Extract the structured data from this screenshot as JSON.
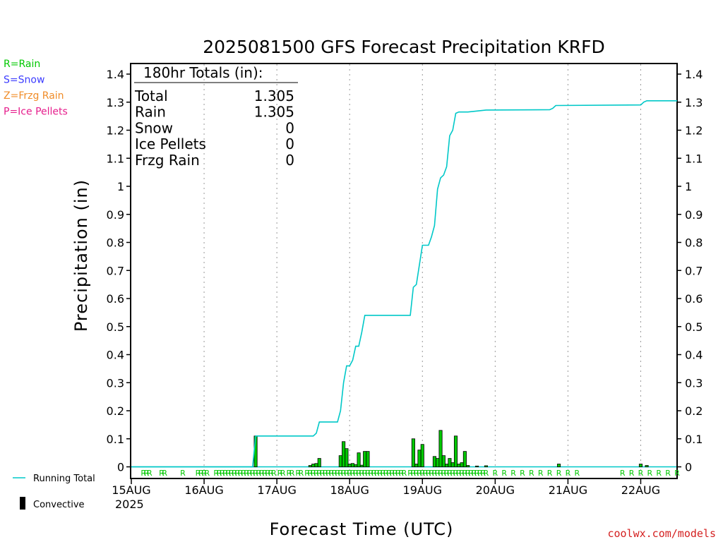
{
  "chart_data": {
    "type": "bar+line",
    "title": "2025081500 GFS Forecast Precipitation KRFD",
    "ylabel": "Precipitation (in)",
    "xlabel": "Forecast Time (UTC)",
    "ylim": [
      0,
      1.4
    ],
    "yticks": [
      "1.4",
      "1.3",
      "1.2",
      "1.1",
      "1",
      "0.9",
      "0.8",
      "0.7",
      "0.6",
      "0.5",
      "0.4",
      "0.3",
      "0.2",
      "0.1",
      "0"
    ],
    "xlim_hours": [
      0,
      180
    ],
    "x_ticks": [
      {
        "label": "15AUG",
        "hour": 0
      },
      {
        "label": "16AUG",
        "hour": 24
      },
      {
        "label": "17AUG",
        "hour": 48
      },
      {
        "label": "18AUG",
        "hour": 72
      },
      {
        "label": "19AUG",
        "hour": 96
      },
      {
        "label": "20AUG",
        "hour": 120
      },
      {
        "label": "21AUG",
        "hour": 144
      },
      {
        "label": "22AUG",
        "hour": 168
      }
    ],
    "year_label": "2025",
    "grid": "vertical dotted at day boundaries",
    "legend_types": [
      {
        "label": "R=Rain",
        "color": "#00c800"
      },
      {
        "label": "S=Snow",
        "color": "#3c3cff"
      },
      {
        "label": "Z=Frzg Rain",
        "color": "#f08c28"
      },
      {
        "label": "P=Ice Pellets",
        "color": "#e61e8c"
      }
    ],
    "legend_series": [
      {
        "label": "Running Total",
        "color": "#00c8c8"
      },
      {
        "label": "Convective",
        "color": "#000000"
      }
    ],
    "totals_box": {
      "header": "180hr Totals (in):",
      "rows": [
        {
          "label": "Total",
          "value": "1.305"
        },
        {
          "label": "Rain",
          "value": "1.305"
        },
        {
          "label": "Snow",
          "value": "0"
        },
        {
          "label": "Ice Pellets",
          "value": "0"
        },
        {
          "label": "Frzg Rain",
          "value": "0"
        }
      ]
    },
    "running_total": [
      [
        0,
        0
      ],
      [
        40,
        0
      ],
      [
        41,
        0.11
      ],
      [
        60,
        0.11
      ],
      [
        61,
        0.12
      ],
      [
        62,
        0.16
      ],
      [
        68,
        0.16
      ],
      [
        69,
        0.2
      ],
      [
        70,
        0.3
      ],
      [
        71,
        0.36
      ],
      [
        72,
        0.36
      ],
      [
        73,
        0.38
      ],
      [
        74,
        0.43
      ],
      [
        75,
        0.43
      ],
      [
        76,
        0.48
      ],
      [
        77,
        0.54
      ],
      [
        92,
        0.54
      ],
      [
        93,
        0.64
      ],
      [
        94,
        0.65
      ],
      [
        95,
        0.72
      ],
      [
        96,
        0.79
      ],
      [
        98,
        0.79
      ],
      [
        99,
        0.82
      ],
      [
        100,
        0.86
      ],
      [
        101,
        0.99
      ],
      [
        102,
        1.03
      ],
      [
        103,
        1.04
      ],
      [
        104,
        1.07
      ],
      [
        105,
        1.18
      ],
      [
        106,
        1.2
      ],
      [
        107,
        1.26
      ],
      [
        108,
        1.265
      ],
      [
        111,
        1.265
      ],
      [
        117,
        1.272
      ],
      [
        138,
        1.273
      ],
      [
        139,
        1.278
      ],
      [
        140,
        1.288
      ],
      [
        168,
        1.29
      ],
      [
        169,
        1.3
      ],
      [
        170,
        1.305
      ],
      [
        180,
        1.305
      ]
    ],
    "hourly_bars": [
      [
        41,
        0.11
      ],
      [
        59,
        0.005
      ],
      [
        60,
        0.01
      ],
      [
        61,
        0.012
      ],
      [
        62,
        0.03
      ],
      [
        69,
        0.04
      ],
      [
        70,
        0.09
      ],
      [
        71,
        0.065
      ],
      [
        72,
        0.01
      ],
      [
        73,
        0.012
      ],
      [
        74,
        0.008
      ],
      [
        75,
        0.05
      ],
      [
        76,
        0.006
      ],
      [
        77,
        0.055
      ],
      [
        78,
        0.055
      ],
      [
        93,
        0.1
      ],
      [
        94,
        0.01
      ],
      [
        95,
        0.06
      ],
      [
        96,
        0.08
      ],
      [
        100,
        0.037
      ],
      [
        101,
        0.03
      ],
      [
        102,
        0.13
      ],
      [
        103,
        0.04
      ],
      [
        104,
        0.01
      ],
      [
        105,
        0.03
      ],
      [
        106,
        0.015
      ],
      [
        107,
        0.11
      ],
      [
        108,
        0.01
      ],
      [
        109,
        0.015
      ],
      [
        110,
        0.055
      ],
      [
        111,
        0.005
      ],
      [
        114,
        0.003
      ],
      [
        117,
        0.004
      ],
      [
        141,
        0.01
      ],
      [
        168,
        0.01
      ],
      [
        170,
        0.005
      ]
    ],
    "precip_type_marks": {
      "symbol": "R",
      "hours": [
        4,
        5,
        6,
        10,
        11,
        17,
        22,
        23,
        24,
        25,
        28,
        29,
        30,
        31,
        32,
        33,
        34,
        35,
        36,
        37,
        38,
        39,
        40,
        41,
        42,
        43,
        44,
        45,
        46,
        47,
        49,
        50,
        52,
        53,
        55,
        56,
        58,
        59,
        60,
        61,
        62,
        63,
        64,
        65,
        66,
        67,
        68,
        69,
        70,
        71,
        72,
        73,
        74,
        75,
        76,
        77,
        78,
        79,
        80,
        81,
        82,
        83,
        84,
        85,
        86,
        87,
        88,
        89,
        90,
        92,
        93,
        94,
        95,
        96,
        97,
        98,
        99,
        100,
        101,
        102,
        103,
        104,
        105,
        106,
        107,
        108,
        109,
        110,
        111,
        112,
        113,
        114,
        115,
        116,
        117,
        120,
        123,
        126,
        129,
        132,
        135,
        138,
        141,
        144,
        147,
        162,
        165,
        168,
        171,
        174,
        177,
        180
      ]
    }
  },
  "credit": "coolwx.com/models"
}
